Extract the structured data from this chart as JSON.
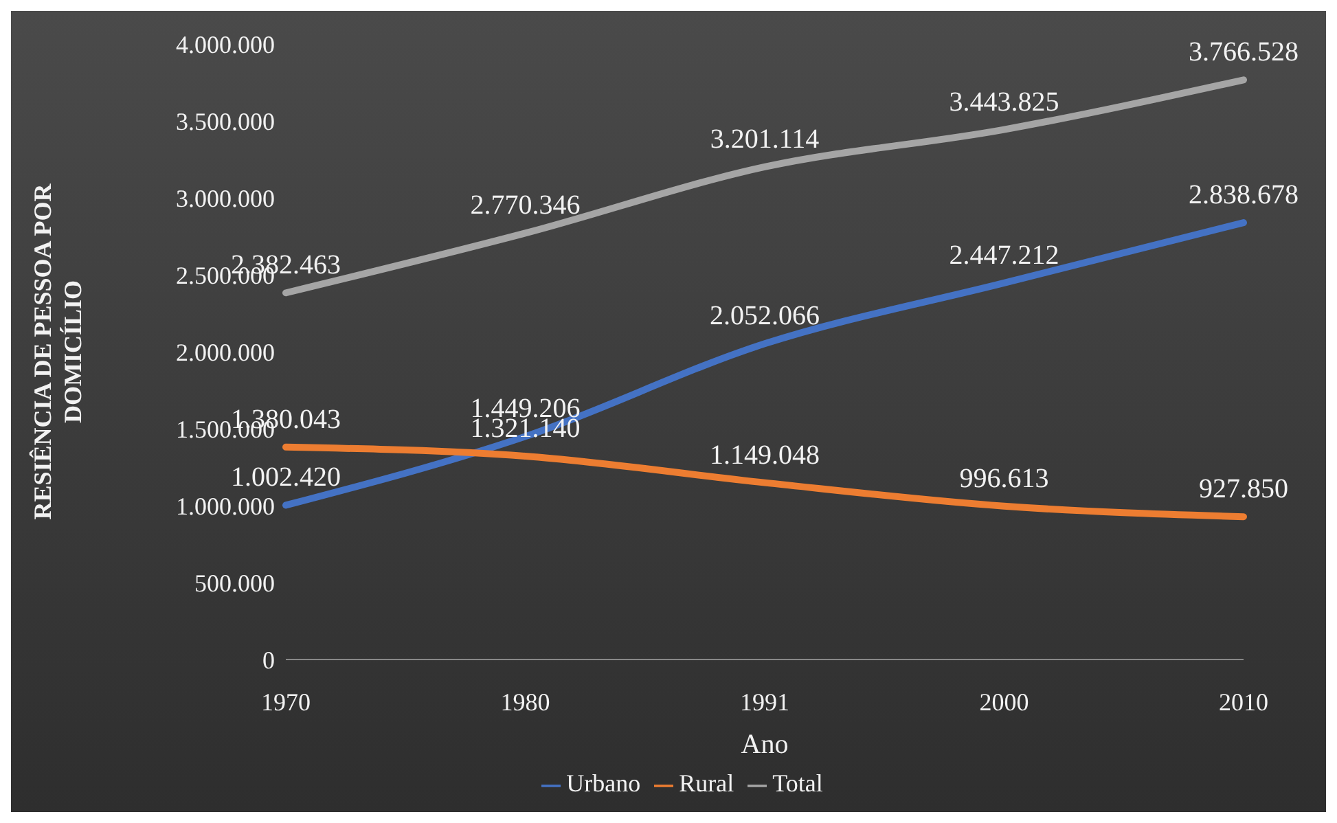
{
  "chart_data": {
    "type": "line",
    "xlabel": "Ano",
    "ylabel": "RESIÊNCIA DE PESSOA POR DOMICÍLIO",
    "categories": [
      "1970",
      "1980",
      "1991",
      "2000",
      "2010"
    ],
    "series": [
      {
        "name": "Urbano",
        "color": "#4472c4",
        "values": [
          1002420,
          1449206,
          2052066,
          2447212,
          2838678
        ],
        "value_labels": [
          "1.002.420",
          "1.449.206",
          "2.052.066",
          "2.447.212",
          "2.838.678"
        ]
      },
      {
        "name": "Rural",
        "color": "#ed7d31",
        "values": [
          1380043,
          1321140,
          1149048,
          996613,
          927850
        ],
        "value_labels": [
          "1.380.043",
          "1.321.140",
          "1.149.048",
          "996.613",
          "927.850"
        ]
      },
      {
        "name": "Total",
        "color": "#a5a5a5",
        "values": [
          2382463,
          2770346,
          3201114,
          3443825,
          3766528
        ],
        "value_labels": [
          "2.382.463",
          "2.770.346",
          "3.201.114",
          "3.443.825",
          "3.766.528"
        ]
      }
    ],
    "ylim": [
      0,
      4000000
    ],
    "yticks": [
      0,
      {
        "value": 500000,
        "label": "500.000"
      },
      {
        "value": 1000000,
        "label": "1.000.000"
      },
      {
        "value": 1500000,
        "label": "1.500.000"
      },
      {
        "value": 2000000,
        "label": "2.000.000"
      },
      {
        "value": 2500000,
        "label": "2.500.000"
      },
      {
        "value": 3000000,
        "label": "3.000.000"
      },
      {
        "value": 3500000,
        "label": "3.500.000"
      },
      {
        "value": 4000000,
        "label": "4.000.000"
      }
    ],
    "grid": false,
    "legend": "bottom",
    "marker": "none",
    "line_style": "solid"
  }
}
